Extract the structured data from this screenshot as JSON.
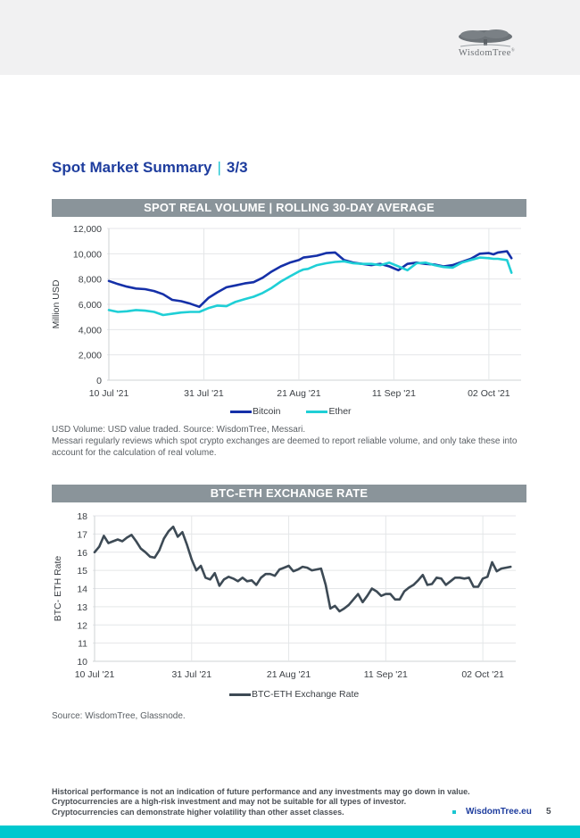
{
  "header": {
    "logo_text": "WisdomTree",
    "logo_mark": "®"
  },
  "page": {
    "title": "Spot Market Summary",
    "title_separator": "|",
    "title_page": "3/3"
  },
  "colors": {
    "title_blue": "#1e3d9e",
    "accent_cyan": "#1ac6d1",
    "bitcoin": "#1530a8",
    "ether": "#1fcfd6",
    "btc_eth": "#3d4a55",
    "section_bar": "#8a949a",
    "bottom_band": "#00c8cf"
  },
  "chart_data": [
    {
      "type": "line",
      "title": "SPOT REAL VOLUME | ROLLING 30-DAY AVERAGE",
      "xlabel": "",
      "ylabel": "Million USD",
      "ylim": [
        0,
        12000
      ],
      "yticks": [
        "0",
        "2,000",
        "4,000",
        "6,000",
        "8,000",
        "10,000",
        "12,000"
      ],
      "ytick_values": [
        0,
        2000,
        4000,
        6000,
        8000,
        10000,
        12000
      ],
      "xticks": [
        "10 Jul '21",
        "31 Jul '21",
        "21 Aug '21",
        "11 Sep '21",
        "02 Oct '21"
      ],
      "xtick_days": [
        0,
        21,
        42,
        63,
        84
      ],
      "grid": true,
      "legend": "bottom",
      "x_days": [
        0,
        2,
        4,
        6,
        8,
        10,
        12,
        14,
        16,
        18,
        20,
        22,
        24,
        26,
        28,
        30,
        32,
        34,
        36,
        38,
        40,
        42,
        43,
        44,
        46,
        48,
        50,
        52,
        54,
        56,
        58,
        60,
        62,
        64,
        66,
        68,
        70,
        72,
        74,
        76,
        78,
        80,
        82,
        84,
        85,
        86,
        88,
        89
      ],
      "series": [
        {
          "name": "Bitcoin",
          "values": [
            7850,
            7600,
            7400,
            7250,
            7200,
            7050,
            6800,
            6350,
            6250,
            6050,
            5800,
            6500,
            6950,
            7350,
            7500,
            7650,
            7750,
            8100,
            8600,
            9000,
            9300,
            9500,
            9700,
            9750,
            9850,
            10050,
            10100,
            9500,
            9300,
            9200,
            9100,
            9200,
            9000,
            8700,
            9200,
            9300,
            9200,
            9150,
            9000,
            9100,
            9350,
            9600,
            10000,
            10050,
            9950,
            10100,
            10200,
            9650
          ],
          "extra": "end ~9650"
        },
        {
          "name": "Ether",
          "values": [
            5550,
            5400,
            5450,
            5550,
            5500,
            5400,
            5150,
            5250,
            5350,
            5400,
            5400,
            5700,
            5900,
            5850,
            6200,
            6400,
            6600,
            6900,
            7300,
            7800,
            8200,
            8600,
            8750,
            8800,
            9100,
            9250,
            9350,
            9400,
            9250,
            9200,
            9200,
            9100,
            9300,
            9000,
            8700,
            9250,
            9300,
            9100,
            8950,
            8900,
            9300,
            9500,
            9700,
            9650,
            9600,
            9600,
            9500,
            8500
          ]
        }
      ]
    },
    {
      "type": "line",
      "title": "BTC-ETH EXCHANGE RATE",
      "xlabel": "",
      "ylabel": "BTC- ETH Rate",
      "ylim": [
        10,
        18
      ],
      "yticks": [
        "10",
        "11",
        "12",
        "13",
        "14",
        "15",
        "16",
        "17",
        "18"
      ],
      "ytick_values": [
        10,
        11,
        12,
        13,
        14,
        15,
        16,
        17,
        18
      ],
      "xticks": [
        "10 Jul '21",
        "31 Jul '21",
        "21 Aug '21",
        "11 Sep '21",
        "02 Oct '21"
      ],
      "xtick_days": [
        0,
        21,
        42,
        63,
        84
      ],
      "grid": true,
      "legend": "bottom",
      "x_days": [
        0,
        1,
        2,
        3,
        4,
        5,
        6,
        7,
        8,
        9,
        10,
        11,
        12,
        13,
        14,
        15,
        16,
        17,
        18,
        19,
        20,
        21,
        22,
        23,
        24,
        25,
        26,
        27,
        28,
        29,
        30,
        31,
        32,
        33,
        34,
        35,
        36,
        37,
        38,
        39,
        40,
        41,
        42,
        43,
        44,
        45,
        46,
        47,
        48,
        49,
        50,
        51,
        52,
        53,
        54,
        55,
        56,
        57,
        58,
        59,
        60,
        61,
        62,
        63,
        64,
        65,
        66,
        67,
        68,
        69,
        70,
        71,
        72,
        73,
        74,
        75,
        76,
        77,
        78,
        79,
        80,
        81,
        82,
        83,
        84,
        85,
        86,
        87,
        88,
        89,
        90
      ],
      "series": [
        {
          "name": "BTC-ETH Exchange Rate",
          "values": [
            16.0,
            16.3,
            16.9,
            16.5,
            16.6,
            16.7,
            16.6,
            16.8,
            16.95,
            16.6,
            16.2,
            16.0,
            15.75,
            15.7,
            16.1,
            16.75,
            17.15,
            17.4,
            16.85,
            17.1,
            16.4,
            15.6,
            15.0,
            15.25,
            14.6,
            14.5,
            14.85,
            14.15,
            14.5,
            14.65,
            14.55,
            14.4,
            14.6,
            14.4,
            14.45,
            14.2,
            14.6,
            14.8,
            14.8,
            14.7,
            15.05,
            15.15,
            15.25,
            14.95,
            15.05,
            15.2,
            15.15,
            15.0,
            15.05,
            15.1,
            14.2,
            12.9,
            13.05,
            12.75,
            12.9,
            13.1,
            13.4,
            13.7,
            13.25,
            13.6,
            14.0,
            13.85,
            13.6,
            13.7,
            13.7,
            13.4,
            13.4,
            13.85,
            14.05,
            14.2,
            14.45,
            14.75,
            14.2,
            14.25,
            14.6,
            14.55,
            14.2,
            14.4,
            14.6,
            14.6,
            14.55,
            14.6,
            14.1,
            14.1,
            14.55,
            14.65,
            15.45,
            14.95,
            15.1,
            15.15,
            15.2
          ]
        }
      ]
    }
  ],
  "chart1": {
    "title": "SPOT REAL VOLUME | ROLLING 30-DAY AVERAGE",
    "legend": [
      "Bitcoin",
      "Ether"
    ],
    "note_line1": "USD Volume: USD value traded. Source: WisdomTree, Messari.",
    "note_line2": "Messari regularly reviews which spot crypto exchanges are deemed to report reliable volume, and only take these into account for the calculation of real volume."
  },
  "chart2": {
    "title": "BTC-ETH EXCHANGE RATE",
    "legend": [
      "BTC-ETH Exchange Rate"
    ],
    "note": "Source: WisdomTree, Glassnode."
  },
  "footer": {
    "disclaimer": [
      "Historical performance is not an indication of future performance and any investments may go down in value.",
      "Cryptocurrencies are a high-risk investment and may not be suitable for all types of investor.",
      "Cryptocurrencies can demonstrate higher volatility than other asset classes."
    ],
    "link": "WisdomTree.eu",
    "page_number": "5"
  }
}
